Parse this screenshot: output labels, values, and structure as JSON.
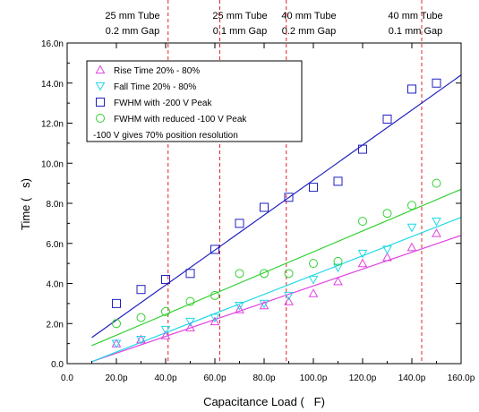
{
  "chart_data": {
    "type": "scatter",
    "xlabel": "Capacitance Load (   F)",
    "ylabel": "Time (   s)",
    "xlim": [
      0,
      160
    ],
    "ylim": [
      0,
      16
    ],
    "x_ticks": [
      "0.0",
      "20.0p",
      "40.0p",
      "60.0p",
      "80.0p",
      "100.0p",
      "120.0p",
      "140.0p",
      "160.0p"
    ],
    "y_ticks": [
      "0.0",
      "2.0n",
      "4.0n",
      "6.0n",
      "8.0n",
      "10.0n",
      "12.0n",
      "14.0n",
      "16.0n"
    ],
    "grid": false,
    "legend_position": "top-left",
    "note": "-100 V gives 70% position resolution",
    "top_labels": [
      {
        "line1": "25 mm Tube",
        "line2": "0.2 mm Gap"
      },
      {
        "line1": "25 mm Tube",
        "line2": "0.1 mm Gap"
      },
      {
        "line1": "40 mm Tube",
        "line2": "0.2 mm Gap"
      },
      {
        "line1": "40 mm Tube",
        "line2": "0.1 mm Gap"
      }
    ],
    "vlines": [
      41,
      62,
      89,
      144
    ],
    "vline_color": "#e0242a",
    "series": [
      {
        "name": "Rise Time 20% - 80%",
        "marker": "triangle-up",
        "color": "#e040e0",
        "x": [
          20,
          30,
          40,
          50,
          60,
          70,
          80,
          90,
          100,
          110,
          120,
          130,
          140,
          150
        ],
        "y": [
          1.0,
          1.2,
          1.4,
          1.8,
          2.1,
          2.7,
          2.9,
          3.1,
          3.5,
          4.1,
          5.0,
          5.3,
          5.8,
          6.5
        ],
        "fit": [
          [
            10,
            0.1
          ],
          [
            160,
            6.4
          ]
        ]
      },
      {
        "name": "Fall Time 20% - 80%",
        "marker": "triangle-down",
        "color": "#20d8e8",
        "x": [
          20,
          30,
          40,
          50,
          60,
          70,
          80,
          90,
          100,
          110,
          120,
          130,
          140,
          150
        ],
        "y": [
          1.0,
          1.2,
          1.7,
          2.1,
          2.3,
          2.9,
          3.0,
          3.4,
          4.2,
          4.8,
          5.5,
          5.7,
          6.8,
          7.1
        ],
        "fit": [
          [
            10,
            0.1
          ],
          [
            160,
            7.3
          ]
        ]
      },
      {
        "name": "FWHM with -200 V Peak",
        "marker": "square",
        "color": "#2020c0",
        "x": [
          20,
          30,
          40,
          50,
          60,
          70,
          80,
          90,
          100,
          110,
          120,
          130,
          140,
          150
        ],
        "y": [
          3.0,
          3.7,
          4.2,
          4.5,
          5.7,
          7.0,
          7.8,
          8.3,
          8.8,
          9.1,
          10.7,
          12.2,
          13.7,
          14.0
        ],
        "fit": [
          [
            10,
            1.3
          ],
          [
            160,
            14.4
          ]
        ]
      },
      {
        "name": "FWHM with reduced -100 V Peak",
        "marker": "circle",
        "color": "#30d030",
        "x": [
          20,
          30,
          40,
          50,
          60,
          70,
          80,
          90,
          100,
          110,
          120,
          130,
          140,
          150
        ],
        "y": [
          2.0,
          2.3,
          2.6,
          3.1,
          3.4,
          4.5,
          4.5,
          4.5,
          5.0,
          5.1,
          7.1,
          7.5,
          7.9,
          9.0
        ],
        "fit": [
          [
            10,
            0.9
          ],
          [
            160,
            8.7
          ]
        ]
      }
    ]
  }
}
